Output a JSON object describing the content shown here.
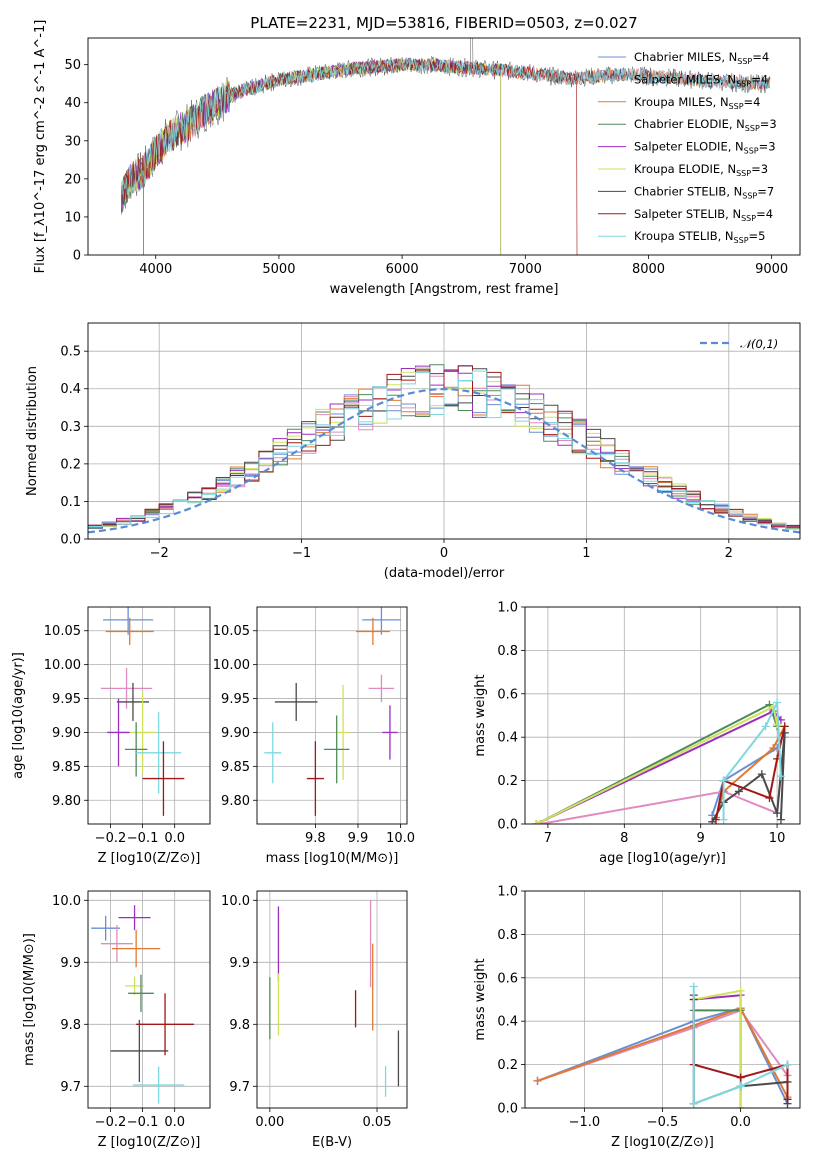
{
  "figure_title": "PLATE=2231, MJD=53816, FIBERID=0503, z=0.027",
  "colors": {
    "Chabrier MILES": "#6a8fd8",
    "Salpeter MILES": "#e08bc0",
    "Kroupa MILES": "#e07a30",
    "Chabrier ELODIE": "#4d8b5a",
    "Salpeter ELODIE": "#9a2fc0",
    "Kroupa ELODIE": "#cfe25a",
    "Chabrier STELIB": "#4a4a4a",
    "Salpeter STELIB": "#a01818",
    "Kroupa STELIB": "#7fd8e0"
  },
  "chart_data": [
    {
      "id": "spectrum",
      "type": "line",
      "title": "PLATE=2231, MJD=53816, FIBERID=0503, z=0.027",
      "xlabel": "wavelength [Angstrom, rest frame]",
      "ylabel": "Flux [f_λ10^-17 erg cm^-2 s^-1 A^-1]",
      "xlim": [
        3450,
        9230
      ],
      "ylim": [
        0,
        57
      ],
      "xticks": [
        4000,
        5000,
        6000,
        7000,
        8000,
        9000
      ],
      "yticks": [
        0,
        10,
        20,
        30,
        40,
        50
      ],
      "grid": false,
      "legend_position": "top-right",
      "continuum": {
        "x": [
          3720,
          3800,
          3900,
          4000,
          4100,
          4200,
          4300,
          4400,
          4500,
          4600,
          4700,
          4800,
          4900,
          5000,
          5200,
          5400,
          5600,
          5800,
          6000,
          6200,
          6400,
          6600,
          6800,
          7000,
          7200,
          7400,
          7600,
          7800,
          8000,
          8200,
          8400,
          8600,
          8800,
          8990
        ],
        "y": [
          15,
          20,
          22,
          27,
          31,
          33,
          35,
          38,
          40,
          42,
          43,
          44,
          45,
          46,
          47,
          48,
          49,
          49.5,
          50,
          50,
          49.5,
          49,
          48.5,
          48,
          47,
          46.5,
          47,
          47.5,
          47,
          46.5,
          46,
          45.5,
          45,
          45
        ]
      },
      "series": [
        {
          "name": "Chabrier MILES, N_SSP=4",
          "end": 8990
        },
        {
          "name": "Salpeter MILES, N_SSP=4",
          "end": 8990
        },
        {
          "name": "Kroupa MILES, N_SSP=4",
          "end": 8990
        },
        {
          "name": "Chabrier ELODIE, N_SSP=3",
          "end": 6800
        },
        {
          "name": "Salpeter ELODIE, N_SSP=3",
          "end": 6800
        },
        {
          "name": "Kroupa ELODIE, N_SSP=3",
          "end": 6800
        },
        {
          "name": "Chabrier STELIB, N_SSP=7",
          "end": 8990
        },
        {
          "name": "Salpeter STELIB, N_SSP=4",
          "end": 7420
        },
        {
          "name": "Kroupa STELIB, N_SSP=5",
          "end": 8990
        }
      ]
    },
    {
      "id": "residuals",
      "type": "histogram",
      "xlabel": "(data-model)/error",
      "ylabel": "Normed distribution",
      "xlim": [
        -2.5,
        2.5
      ],
      "ylim": [
        0,
        0.575
      ],
      "xticks": [
        -2,
        -1,
        0,
        1,
        2
      ],
      "yticks": [
        0.0,
        0.1,
        0.2,
        0.3,
        0.4,
        0.5
      ],
      "grid": true,
      "legend_position": "top-right",
      "reference_curve": {
        "name": "𝒩(0,1)",
        "mean": 0,
        "sigma": 1
      },
      "bin_width": 0.1
    },
    {
      "id": "age-vs-Z",
      "type": "scatter",
      "xlabel": "Z [log10(Z/Z⊙)]",
      "ylabel": "age  [log10(age/yr)]",
      "xlim": [
        -0.27,
        0.11
      ],
      "ylim": [
        9.765,
        10.085
      ],
      "xticks": [
        -0.2,
        -0.1,
        0.0
      ],
      "yticks": [
        9.8,
        9.85,
        9.9,
        9.95,
        10.0,
        10.05
      ],
      "grid": true,
      "points": [
        {
          "name": "Chabrier MILES",
          "x": -0.145,
          "y": 10.066,
          "xerr": 0.078,
          "yerr": 0.022
        },
        {
          "name": "Kroupa MILES",
          "x": -0.14,
          "y": 10.049,
          "xerr": 0.075,
          "yerr": 0.02
        },
        {
          "name": "Salpeter MILES",
          "x": -0.15,
          "y": 9.965,
          "xerr": 0.08,
          "yerr": 0.03
        },
        {
          "name": "Chabrier STELIB",
          "x": -0.13,
          "y": 9.945,
          "xerr": 0.05,
          "yerr": 0.028
        },
        {
          "name": "Salpeter ELODIE",
          "x": -0.175,
          "y": 9.9,
          "xerr": 0.035,
          "yerr": 0.05
        },
        {
          "name": "Kroupa ELODIE",
          "x": -0.1,
          "y": 9.9,
          "xerr": 0.04,
          "yerr": 0.06
        },
        {
          "name": "Chabrier ELODIE",
          "x": -0.12,
          "y": 9.875,
          "xerr": 0.035,
          "yerr": 0.04
        },
        {
          "name": "Kroupa STELIB",
          "x": -0.05,
          "y": 9.87,
          "xerr": 0.07,
          "yerr": 0.06
        },
        {
          "name": "Salpeter STELIB",
          "x": -0.035,
          "y": 9.832,
          "xerr": 0.065,
          "yerr": 0.055
        }
      ]
    },
    {
      "id": "age-vs-mass",
      "type": "scatter",
      "xlabel": "mass [log10(M/M⊙)]",
      "ylabel": "",
      "xlim": [
        9.663,
        10.015
      ],
      "ylim": [
        9.765,
        10.085
      ],
      "xticks": [
        9.8,
        9.9,
        10.0
      ],
      "yticks": [
        9.8,
        9.85,
        9.9,
        9.95,
        10.0,
        10.05
      ],
      "grid": true,
      "points": [
        {
          "name": "Chabrier MILES",
          "x": 9.955,
          "y": 10.066,
          "xerr": 0.045,
          "yerr": 0.022
        },
        {
          "name": "Kroupa MILES",
          "x": 9.935,
          "y": 10.049,
          "xerr": 0.04,
          "yerr": 0.02
        },
        {
          "name": "Salpeter MILES",
          "x": 9.955,
          "y": 9.965,
          "xerr": 0.03,
          "yerr": 0.02
        },
        {
          "name": "Chabrier STELIB",
          "x": 9.755,
          "y": 9.945,
          "xerr": 0.05,
          "yerr": 0.028
        },
        {
          "name": "Salpeter ELODIE",
          "x": 9.975,
          "y": 9.9,
          "xerr": 0.018,
          "yerr": 0.04
        },
        {
          "name": "Kroupa ELODIE",
          "x": 9.865,
          "y": 9.9,
          "xerr": 0.015,
          "yerr": 0.07
        },
        {
          "name": "Chabrier ELODIE",
          "x": 9.85,
          "y": 9.875,
          "xerr": 0.03,
          "yerr": 0.05
        },
        {
          "name": "Kroupa STELIB",
          "x": 9.7,
          "y": 9.87,
          "xerr": 0.02,
          "yerr": 0.045
        },
        {
          "name": "Salpeter STELIB",
          "x": 9.8,
          "y": 9.832,
          "xerr": 0.02,
          "yerr": 0.055
        }
      ]
    },
    {
      "id": "weight-vs-age",
      "type": "line",
      "xlabel": "age  [log10(age/yr)]",
      "ylabel": "mass weight",
      "xlim": [
        6.7,
        10.3
      ],
      "ylim": [
        0,
        1.0
      ],
      "xticks": [
        7,
        8,
        9,
        10
      ],
      "yticks": [
        0.0,
        0.2,
        0.4,
        0.6,
        0.8,
        1.0
      ],
      "grid": true,
      "series": [
        {
          "name": "Chabrier MILES",
          "x": [
            9.15,
            9.3,
            10.0,
            10.1
          ],
          "y": [
            0.04,
            0.2,
            0.35,
            0.42
          ]
        },
        {
          "name": "Salpeter MILES",
          "x": [
            6.9,
            9.3,
            10.0,
            10.1
          ],
          "y": [
            0.0,
            0.15,
            0.05,
            0.4
          ]
        },
        {
          "name": "Kroupa MILES",
          "x": [
            9.2,
            9.3,
            9.95,
            10.1
          ],
          "y": [
            0.03,
            0.15,
            0.35,
            0.45
          ]
        },
        {
          "name": "Chabrier ELODIE",
          "x": [
            6.85,
            9.9,
            10.0
          ],
          "y": [
            0.0,
            0.55,
            0.45
          ]
        },
        {
          "name": "Salpeter ELODIE",
          "x": [
            6.85,
            9.95,
            10.05
          ],
          "y": [
            0.0,
            0.52,
            0.48
          ]
        },
        {
          "name": "Kroupa ELODIE",
          "x": [
            6.85,
            9.95,
            10.0
          ],
          "y": [
            0.0,
            0.54,
            0.46
          ]
        },
        {
          "name": "Chabrier STELIB",
          "x": [
            9.15,
            9.3,
            9.5,
            9.8,
            10.0,
            10.1,
            10.05
          ],
          "y": [
            0.01,
            0.1,
            0.15,
            0.23,
            0.05,
            0.42,
            0.02
          ]
        },
        {
          "name": "Salpeter STELIB",
          "x": [
            9.2,
            9.3,
            9.9,
            10.0,
            10.1
          ],
          "y": [
            0.02,
            0.2,
            0.12,
            0.3,
            0.45
          ]
        },
        {
          "name": "Kroupa STELIB",
          "x": [
            9.3,
            9.3,
            9.85,
            10.0,
            10.05
          ],
          "y": [
            0.02,
            0.2,
            0.45,
            0.56,
            0.22
          ]
        }
      ]
    },
    {
      "id": "mass-vs-Z",
      "type": "scatter",
      "xlabel": "Z [log10(Z/Z⊙)]",
      "ylabel": "mass [log10(M/M⊙)]",
      "xlim": [
        -0.27,
        0.11
      ],
      "ylim": [
        9.665,
        10.015
      ],
      "xticks": [
        -0.2,
        -0.1,
        0.0
      ],
      "yticks": [
        9.7,
        9.8,
        9.9,
        10.0
      ],
      "grid": true,
      "points": [
        {
          "name": "Salpeter ELODIE",
          "x": -0.125,
          "y": 9.972,
          "xerr": 0.05,
          "yerr": 0.02
        },
        {
          "name": "Chabrier MILES",
          "x": -0.215,
          "y": 9.955,
          "xerr": 0.045,
          "yerr": 0.02
        },
        {
          "name": "Salpeter MILES",
          "x": -0.18,
          "y": 9.93,
          "xerr": 0.05,
          "yerr": 0.03
        },
        {
          "name": "Kroupa MILES",
          "x": -0.12,
          "y": 9.922,
          "xerr": 0.075,
          "yerr": 0.03
        },
        {
          "name": "Kroupa ELODIE",
          "x": -0.125,
          "y": 9.862,
          "xerr": 0.03,
          "yerr": 0.015
        },
        {
          "name": "Chabrier ELODIE",
          "x": -0.105,
          "y": 9.85,
          "xerr": 0.04,
          "yerr": 0.03
        },
        {
          "name": "Salpeter STELIB",
          "x": -0.03,
          "y": 9.8,
          "xerr": 0.09,
          "yerr": 0.05
        },
        {
          "name": "Chabrier STELIB",
          "x": -0.11,
          "y": 9.757,
          "xerr": 0.09,
          "yerr": 0.05
        },
        {
          "name": "Kroupa STELIB",
          "x": -0.05,
          "y": 9.702,
          "xerr": 0.08,
          "yerr": 0.03
        }
      ]
    },
    {
      "id": "mass-vs-ebv",
      "type": "scatter",
      "xlabel": "E(B-V)",
      "ylabel": "",
      "xlim": [
        -0.006,
        0.064
      ],
      "ylim": [
        9.665,
        10.015
      ],
      "xticks": [
        0.0,
        0.05
      ],
      "yticks": [
        9.7,
        9.8,
        9.9,
        10.0
      ],
      "grid": true,
      "points": [
        {
          "name": "Salpeter MILES",
          "x": 0.047,
          "y": 9.93,
          "yerr": 0.07
        },
        {
          "name": "Salpeter ELODIE",
          "x": 0.004,
          "y": 9.93,
          "yerr": 0.06
        },
        {
          "name": "Kroupa MILES",
          "x": 0.048,
          "y": 9.86,
          "yerr": 0.07
        },
        {
          "name": "Kroupa ELODIE",
          "x": 0.004,
          "y": 9.832,
          "yerr": 0.05
        },
        {
          "name": "Chabrier ELODIE",
          "x": 0.0,
          "y": 9.826,
          "yerr": 0.05
        },
        {
          "name": "Salpeter STELIB",
          "x": 0.04,
          "y": 9.825,
          "yerr": 0.03
        },
        {
          "name": "Chabrier STELIB",
          "x": 0.06,
          "y": 9.745,
          "yerr": 0.045
        },
        {
          "name": "Kroupa STELIB",
          "x": 0.054,
          "y": 9.708,
          "yerr": 0.025
        }
      ]
    },
    {
      "id": "weight-vs-Z",
      "type": "line",
      "xlabel": "Z [log10(Z/Z⊙)]",
      "ylabel": "mass weight",
      "xlim": [
        -1.38,
        0.38
      ],
      "ylim": [
        0,
        1.0
      ],
      "xticks": [
        -1.0,
        -0.5,
        0.0
      ],
      "yticks": [
        0.0,
        0.2,
        0.4,
        0.6,
        0.8,
        1.0
      ],
      "grid": true,
      "series": [
        {
          "name": "Chabrier MILES",
          "x": [
            -1.3,
            -0.3,
            0.0,
            0.3
          ],
          "y": [
            0.125,
            0.4,
            0.46,
            0.02
          ]
        },
        {
          "name": "Salpeter MILES",
          "x": [
            -1.3,
            -0.3,
            0.0,
            0.3
          ],
          "y": [
            0.125,
            0.37,
            0.45,
            0.15
          ]
        },
        {
          "name": "Kroupa MILES",
          "x": [
            -1.3,
            -0.3,
            0.0,
            0.3
          ],
          "y": [
            0.125,
            0.38,
            0.46,
            0.05
          ]
        },
        {
          "name": "Chabrier ELODIE",
          "x": [
            -0.3,
            0.0,
            0.0
          ],
          "y": [
            0.45,
            0.45,
            0.1
          ]
        },
        {
          "name": "Salpeter ELODIE",
          "x": [
            -0.3,
            0.0,
            0.0
          ],
          "y": [
            0.5,
            0.52,
            0.0
          ]
        },
        {
          "name": "Kroupa ELODIE",
          "x": [
            -0.3,
            0.0,
            0.0
          ],
          "y": [
            0.5,
            0.54,
            0.0
          ]
        },
        {
          "name": "Chabrier STELIB",
          "x": [
            -0.3,
            -0.3,
            0.0,
            0.3,
            0.3
          ],
          "y": [
            0.52,
            0.02,
            0.1,
            0.12,
            0.02
          ]
        },
        {
          "name": "Salpeter STELIB",
          "x": [
            -0.3,
            -0.3,
            0.0,
            0.3,
            0.3
          ],
          "y": [
            0.5,
            0.2,
            0.14,
            0.2,
            0.04
          ]
        },
        {
          "name": "Kroupa STELIB",
          "x": [
            -0.3,
            -0.3,
            0.0,
            0.3
          ],
          "y": [
            0.56,
            0.02,
            0.1,
            0.2
          ]
        }
      ]
    }
  ]
}
